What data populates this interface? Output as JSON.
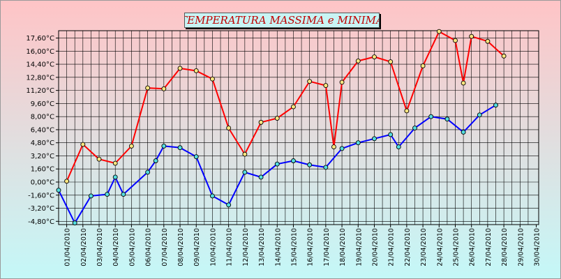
{
  "chart_data": {
    "type": "line",
    "title": "TEMPERATURA MASSIMA e MINIMA",
    "x": [
      "01/04/2010",
      "02/04/2010",
      "03/04/2010",
      "04/04/2010",
      "05/04/2010",
      "06/04/2010",
      "07/04/2010",
      "08/04/2010",
      "09/04/2010",
      "10/04/2010",
      "11/04/2010",
      "12/04/2010",
      "13/04/2010",
      "14/04/2010",
      "15/04/2010",
      "16/04/2010",
      "17/04/2010",
      "18/04/2010",
      "19/04/2010",
      "20/04/2010",
      "21/04/2010",
      "22/04/2010",
      "23/04/2010",
      "24/04/2010",
      "25/04/2010",
      "26/04/2010",
      "27/04/2010",
      "28/04/2010",
      "29/04/2010",
      "30/04/2010"
    ],
    "series": [
      {
        "color": "#ff0000",
        "points": [
          [
            0.5,
            0.1
          ],
          [
            1.5,
            4.6
          ],
          [
            2.5,
            2.8
          ],
          [
            3.5,
            2.3
          ],
          [
            4.5,
            4.4
          ],
          [
            5.5,
            11.5
          ],
          [
            6.5,
            11.4
          ],
          [
            7.5,
            13.9
          ],
          [
            8.5,
            13.6
          ],
          [
            9.5,
            12.6
          ],
          [
            10.5,
            6.6
          ],
          [
            11.5,
            3.4
          ],
          [
            12.5,
            7.3
          ],
          [
            13.5,
            7.8
          ],
          [
            14.5,
            9.2
          ],
          [
            15.5,
            12.3
          ],
          [
            16.5,
            11.8
          ],
          [
            17.0,
            4.3
          ],
          [
            17.5,
            12.2
          ],
          [
            18.5,
            14.8
          ],
          [
            19.5,
            15.3
          ],
          [
            20.5,
            14.7
          ],
          [
            21.5,
            8.7
          ],
          [
            22.5,
            14.2
          ],
          [
            23.5,
            18.4
          ],
          [
            24.5,
            17.3
          ],
          [
            25.0,
            12.1
          ],
          [
            25.5,
            17.8
          ],
          [
            26.5,
            17.2
          ],
          [
            27.5,
            15.4
          ]
        ]
      },
      {
        "color": "#0000ff",
        "points": [
          [
            0.0,
            -1.0
          ],
          [
            1.0,
            -5.0
          ],
          [
            2.0,
            -1.7
          ],
          [
            3.0,
            -1.5
          ],
          [
            3.5,
            0.6
          ],
          [
            4.0,
            -1.5
          ],
          [
            5.5,
            1.2
          ],
          [
            6.0,
            2.6
          ],
          [
            6.5,
            4.4
          ],
          [
            7.5,
            4.2
          ],
          [
            8.5,
            3.1
          ],
          [
            9.5,
            -1.7
          ],
          [
            10.5,
            -2.8
          ],
          [
            11.5,
            1.2
          ],
          [
            12.5,
            0.6
          ],
          [
            13.5,
            2.2
          ],
          [
            14.5,
            2.6
          ],
          [
            15.5,
            2.1
          ],
          [
            16.5,
            1.8
          ],
          [
            17.5,
            4.1
          ],
          [
            18.5,
            4.8
          ],
          [
            19.5,
            5.3
          ],
          [
            20.5,
            5.8
          ],
          [
            21.0,
            4.3
          ],
          [
            22.0,
            6.6
          ],
          [
            23.0,
            8.0
          ],
          [
            24.0,
            7.7
          ],
          [
            25.0,
            6.1
          ],
          [
            26.0,
            8.2
          ],
          [
            27.0,
            9.4
          ]
        ]
      }
    ],
    "yticks": [
      "17,60°C",
      "16,00°C",
      "14,40°C",
      "12,80°C",
      "11,20°C",
      "9,60°C",
      "8,00°C",
      "6,40°C",
      "4,80°C",
      "3,20°C",
      "1,60°C",
      "0,00°C",
      "-1,60°C",
      "-3,20°C",
      "-4,80°C"
    ],
    "ylim": [
      -5.2,
      18.5
    ],
    "grid": true,
    "legend": "none"
  }
}
